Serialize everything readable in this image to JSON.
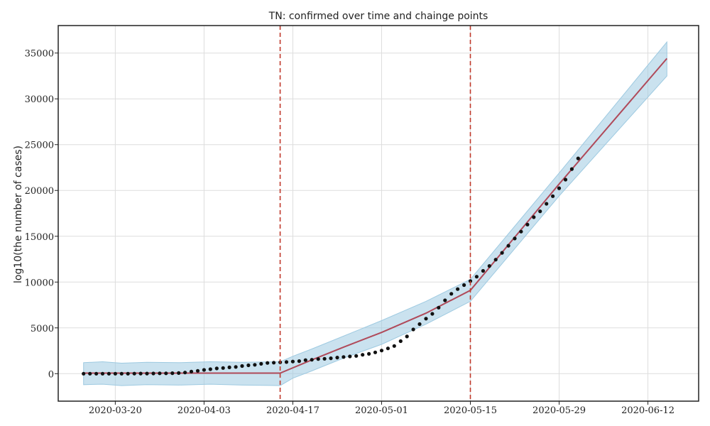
{
  "chart_data": {
    "type": "line",
    "title": "TN: confirmed over time and chainge points",
    "xlabel": "",
    "ylabel": "log10(the number of cases)",
    "xlim": [
      "2020-03-11",
      "2020-06-20"
    ],
    "ylim": [
      -3000,
      38000
    ],
    "x_ticks": [
      "2020-03-20",
      "2020-04-03",
      "2020-04-17",
      "2020-05-01",
      "2020-05-15",
      "2020-05-29",
      "2020-06-12"
    ],
    "y_ticks": [
      0,
      5000,
      10000,
      15000,
      20000,
      25000,
      30000,
      35000
    ],
    "y_tick_labels": [
      "0",
      "5000",
      "10000",
      "15000",
      "20000",
      "25000",
      "30000",
      "35000"
    ],
    "grid": true,
    "colors": {
      "observed": "#111111",
      "trend": "#b04a5a",
      "band": "#9ecae1",
      "changepoint": "#c0392b",
      "grid": "#dddddd"
    },
    "series": [
      {
        "role": "observed",
        "style": "dots",
        "points": [
          [
            "2020-03-15",
            1
          ],
          [
            "2020-03-16",
            1
          ],
          [
            "2020-03-17",
            1
          ],
          [
            "2020-03-18",
            1
          ],
          [
            "2020-03-19",
            2
          ],
          [
            "2020-03-20",
            3
          ],
          [
            "2020-03-21",
            3
          ],
          [
            "2020-03-22",
            3
          ],
          [
            "2020-03-23",
            9
          ],
          [
            "2020-03-24",
            12
          ],
          [
            "2020-03-25",
            18
          ],
          [
            "2020-03-26",
            26
          ],
          [
            "2020-03-27",
            38
          ],
          [
            "2020-03-28",
            42
          ],
          [
            "2020-03-29",
            50
          ],
          [
            "2020-03-30",
            67
          ],
          [
            "2020-03-31",
            124
          ],
          [
            "2020-04-01",
            234
          ],
          [
            "2020-04-02",
            309
          ],
          [
            "2020-04-03",
            411
          ],
          [
            "2020-04-04",
            485
          ],
          [
            "2020-04-05",
            571
          ],
          [
            "2020-04-06",
            621
          ],
          [
            "2020-04-07",
            690
          ],
          [
            "2020-04-08",
            738
          ],
          [
            "2020-04-09",
            834
          ],
          [
            "2020-04-10",
            911
          ],
          [
            "2020-04-11",
            969
          ],
          [
            "2020-04-12",
            1075
          ],
          [
            "2020-04-13",
            1173
          ],
          [
            "2020-04-14",
            1204
          ],
          [
            "2020-04-15",
            1242
          ],
          [
            "2020-04-16",
            1267
          ],
          [
            "2020-04-17",
            1323
          ],
          [
            "2020-04-18",
            1372
          ],
          [
            "2020-04-19",
            1477
          ],
          [
            "2020-04-20",
            1520
          ],
          [
            "2020-04-21",
            1596
          ],
          [
            "2020-04-22",
            1629
          ],
          [
            "2020-04-23",
            1683
          ],
          [
            "2020-04-24",
            1755
          ],
          [
            "2020-04-25",
            1821
          ],
          [
            "2020-04-26",
            1885
          ],
          [
            "2020-04-27",
            1937
          ],
          [
            "2020-04-28",
            2058
          ],
          [
            "2020-04-29",
            2162
          ],
          [
            "2020-04-30",
            2323
          ],
          [
            "2020-05-01",
            2526
          ],
          [
            "2020-05-02",
            2757
          ],
          [
            "2020-05-03",
            3023
          ],
          [
            "2020-05-04",
            3550
          ],
          [
            "2020-05-05",
            4058
          ],
          [
            "2020-05-06",
            4829
          ],
          [
            "2020-05-07",
            5409
          ],
          [
            "2020-05-08",
            6009
          ],
          [
            "2020-05-09",
            6535
          ],
          [
            "2020-05-10",
            7204
          ],
          [
            "2020-05-11",
            8002
          ],
          [
            "2020-05-12",
            8718
          ],
          [
            "2020-05-13",
            9227
          ],
          [
            "2020-05-14",
            9674
          ],
          [
            "2020-05-15",
            10108
          ],
          [
            "2020-05-16",
            10585
          ],
          [
            "2020-05-17",
            11224
          ],
          [
            "2020-05-18",
            11760
          ],
          [
            "2020-05-19",
            12448
          ],
          [
            "2020-05-20",
            13191
          ],
          [
            "2020-05-21",
            13967
          ],
          [
            "2020-05-22",
            14753
          ],
          [
            "2020-05-23",
            15512
          ],
          [
            "2020-05-24",
            16277
          ],
          [
            "2020-05-25",
            17082
          ],
          [
            "2020-05-26",
            17728
          ],
          [
            "2020-05-27",
            18545
          ],
          [
            "2020-05-28",
            19372
          ],
          [
            "2020-05-29",
            20246
          ],
          [
            "2020-05-30",
            21184
          ],
          [
            "2020-05-31",
            22333
          ],
          [
            "2020-06-01",
            23495
          ]
        ]
      },
      {
        "role": "trend",
        "style": "line",
        "points": [
          [
            "2020-03-15",
            60
          ],
          [
            "2020-04-15",
            60
          ],
          [
            "2020-04-20",
            1500
          ],
          [
            "2020-04-25",
            2900
          ],
          [
            "2020-05-01",
            4500
          ],
          [
            "2020-05-08",
            6600
          ],
          [
            "2020-05-15",
            9100
          ],
          [
            "2020-05-29",
            20700
          ],
          [
            "2020-06-15",
            34400
          ]
        ]
      },
      {
        "role": "uncertainty",
        "style": "band",
        "upper": [
          [
            "2020-03-15",
            1200
          ],
          [
            "2020-03-18",
            1300
          ],
          [
            "2020-03-21",
            1150
          ],
          [
            "2020-03-25",
            1250
          ],
          [
            "2020-03-30",
            1200
          ],
          [
            "2020-04-04",
            1300
          ],
          [
            "2020-04-09",
            1250
          ],
          [
            "2020-04-15",
            1300
          ],
          [
            "2020-04-17",
            1900
          ],
          [
            "2020-04-20",
            2700
          ],
          [
            "2020-04-25",
            4100
          ],
          [
            "2020-05-01",
            5800
          ],
          [
            "2020-05-08",
            7900
          ],
          [
            "2020-05-15",
            10300
          ],
          [
            "2020-05-29",
            21900
          ],
          [
            "2020-06-15",
            36200
          ]
        ],
        "lower": [
          [
            "2020-03-15",
            -1200
          ],
          [
            "2020-03-18",
            -1150
          ],
          [
            "2020-03-21",
            -1300
          ],
          [
            "2020-03-25",
            -1200
          ],
          [
            "2020-03-30",
            -1250
          ],
          [
            "2020-04-04",
            -1150
          ],
          [
            "2020-04-09",
            -1250
          ],
          [
            "2020-04-15",
            -1300
          ],
          [
            "2020-04-17",
            -500
          ],
          [
            "2020-04-20",
            300
          ],
          [
            "2020-04-25",
            1700
          ],
          [
            "2020-05-01",
            3200
          ],
          [
            "2020-05-08",
            5400
          ],
          [
            "2020-05-15",
            7900
          ],
          [
            "2020-05-29",
            19400
          ],
          [
            "2020-06-15",
            32500
          ]
        ]
      }
    ],
    "changepoints": [
      "2020-04-15",
      "2020-05-15"
    ]
  }
}
